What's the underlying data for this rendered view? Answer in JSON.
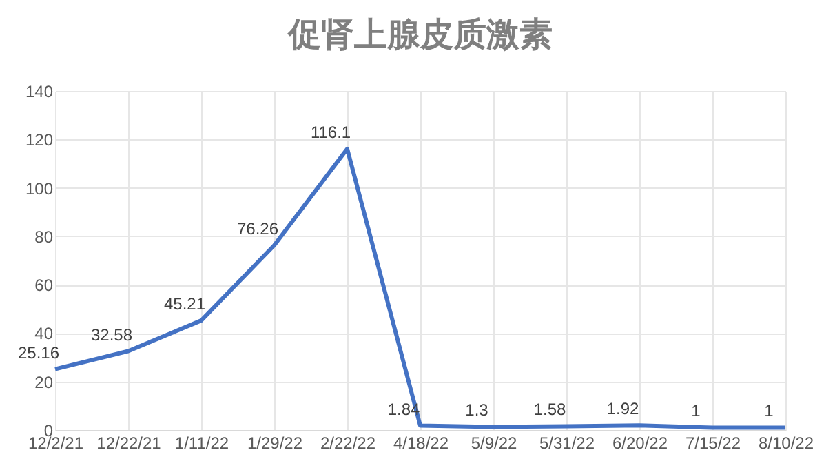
{
  "chart_data": {
    "type": "line",
    "title": "促肾上腺皮质激素",
    "categories": [
      "12/2/21",
      "12/22/21",
      "1/11/22",
      "1/29/22",
      "2/22/22",
      "4/18/22",
      "5/9/22",
      "5/31/22",
      "6/20/22",
      "7/15/22",
      "8/10/22"
    ],
    "series": [
      {
        "color": "#4472c4",
        "values": [
          25.16,
          32.58,
          45.21,
          76.26,
          116.1,
          1.84,
          1.3,
          1.58,
          1.92,
          1,
          1
        ]
      }
    ],
    "ylim": [
      0,
      140
    ],
    "yticks": [
      0,
      20,
      40,
      60,
      80,
      100,
      120,
      140
    ],
    "grid": true,
    "data_labels": true,
    "legend": false,
    "marker": "none",
    "line_style": "solid"
  }
}
